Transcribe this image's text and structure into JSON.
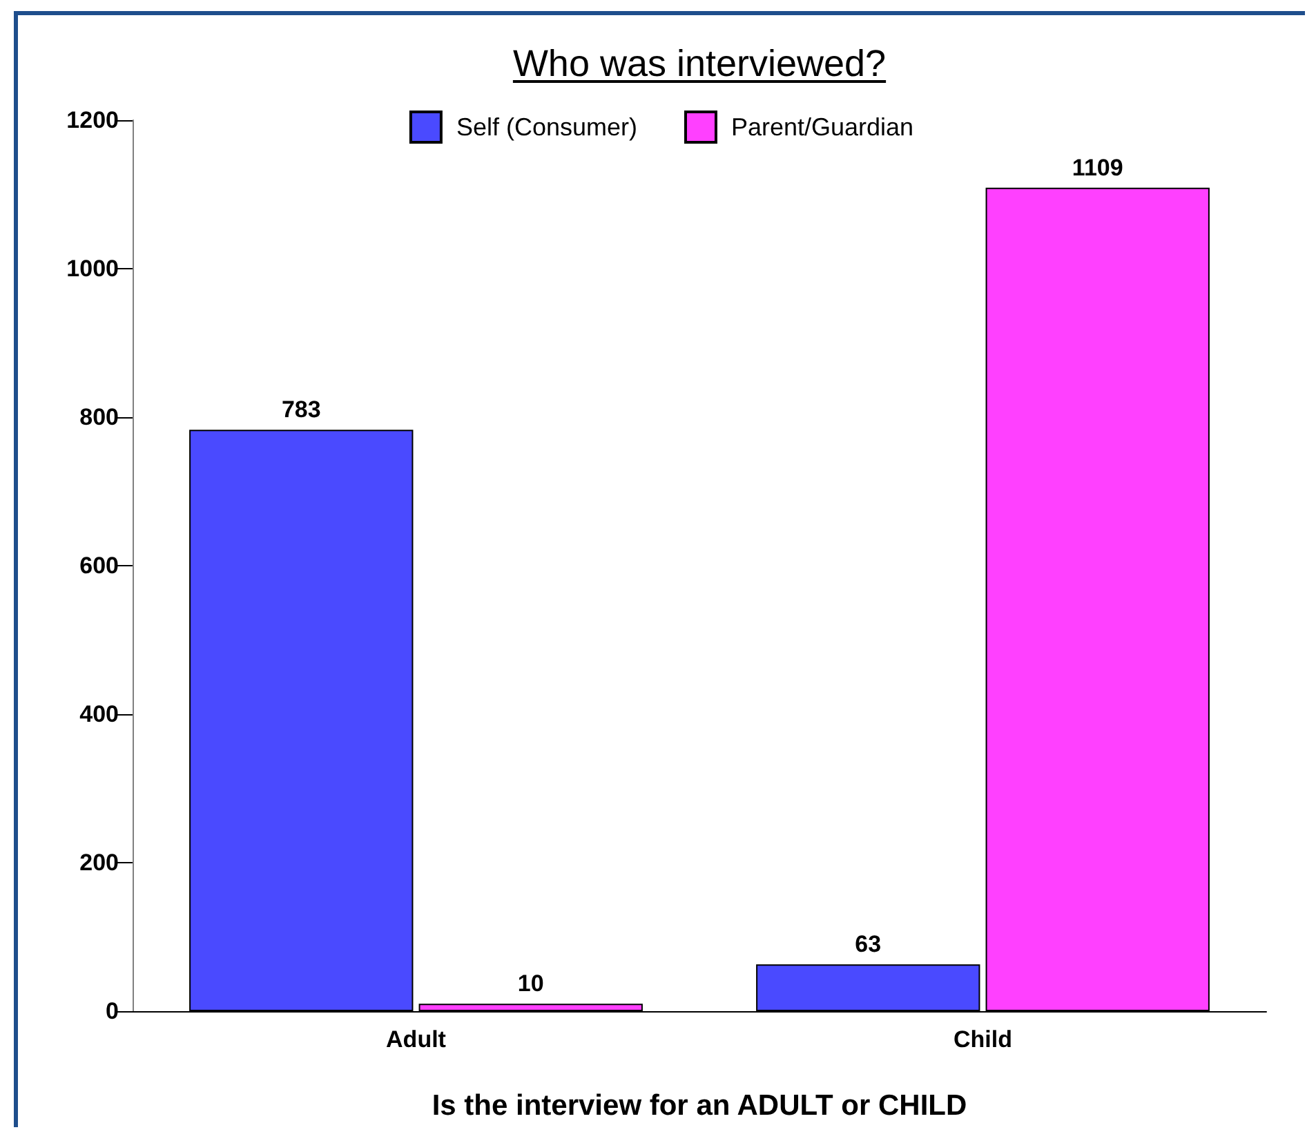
{
  "chart_data": {
    "type": "bar",
    "title": "Who was interviewed?",
    "xlabel": "Is the interview for an ADULT or CHILD",
    "categories": [
      "Adult",
      "Child"
    ],
    "series": [
      {
        "name": "Self (Consumer)",
        "color": "#4a4aff",
        "values": [
          783,
          63
        ]
      },
      {
        "name": "Parent/Guardian",
        "color": "#ff40ff",
        "values": [
          10,
          1109
        ]
      }
    ],
    "ylim": [
      0,
      1200
    ],
    "yticks": [
      0,
      200,
      400,
      600,
      800,
      1000,
      1200
    ],
    "grid": false,
    "legend": "top",
    "data_labels": true
  }
}
